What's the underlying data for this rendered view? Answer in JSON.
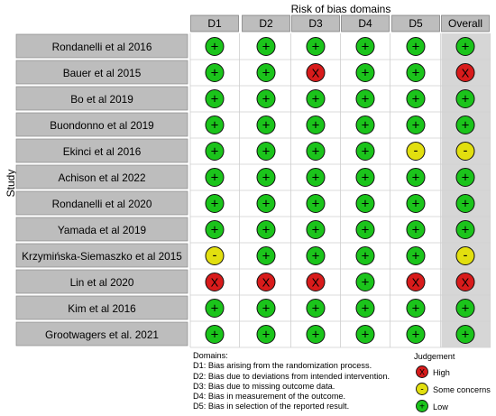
{
  "figure": {
    "header_title": "Risk of bias domains",
    "y_axis_title": "Study",
    "columns": [
      "D1",
      "D2",
      "D3",
      "D4",
      "D5",
      "Overall"
    ],
    "studies": [
      "Rondanelli et al 2016",
      "Bauer et al 2015",
      "Bo et al 2019",
      "Buondonno et al 2019",
      "Ekinci et al 2016",
      "Achison et al 2022",
      "Rondanelli et al 2020",
      "Yamada et al 2019",
      "Krzymińska-Siemaszko et al 2015",
      "Lin et al 2020",
      "Kim et al 2016",
      "Grootwagers et al. 2021"
    ],
    "judgements": [
      [
        "low",
        "low",
        "low",
        "low",
        "low",
        "low"
      ],
      [
        "low",
        "low",
        "high",
        "low",
        "low",
        "high"
      ],
      [
        "low",
        "low",
        "low",
        "low",
        "low",
        "low"
      ],
      [
        "low",
        "low",
        "low",
        "low",
        "low",
        "low"
      ],
      [
        "low",
        "low",
        "low",
        "low",
        "some",
        "some"
      ],
      [
        "low",
        "low",
        "low",
        "low",
        "low",
        "low"
      ],
      [
        "low",
        "low",
        "low",
        "low",
        "low",
        "low"
      ],
      [
        "low",
        "low",
        "low",
        "low",
        "low",
        "low"
      ],
      [
        "some",
        "low",
        "low",
        "low",
        "low",
        "some"
      ],
      [
        "high",
        "high",
        "high",
        "low",
        "high",
        "high"
      ],
      [
        "low",
        "low",
        "low",
        "low",
        "low",
        "low"
      ],
      [
        "low",
        "low",
        "low",
        "low",
        "low",
        "low"
      ]
    ],
    "symbols": {
      "low": "+",
      "some": "-",
      "high": "X"
    },
    "colors": {
      "low": "#1bc41b",
      "some": "#e2df0f",
      "high": "#d81b1b",
      "study_box": "#bdbdbd",
      "header_box": "#bdbdbd",
      "overall_bg": "#d6d6d6"
    },
    "legend": {
      "domains_title": "Domains:",
      "domains": [
        "D1: Bias arising from the randomization process.",
        "D2: Bias due to deviations from intended intervention.",
        "D3: Bias due to missing outcome data.",
        "D4: Bias in measurement of the outcome.",
        "D5: Bias in selection of the reported result."
      ],
      "judgement_title": "Judgement",
      "items": [
        {
          "key": "high",
          "label": "High"
        },
        {
          "key": "some",
          "label": "Some concerns"
        },
        {
          "key": "low",
          "label": "Low"
        }
      ]
    }
  }
}
